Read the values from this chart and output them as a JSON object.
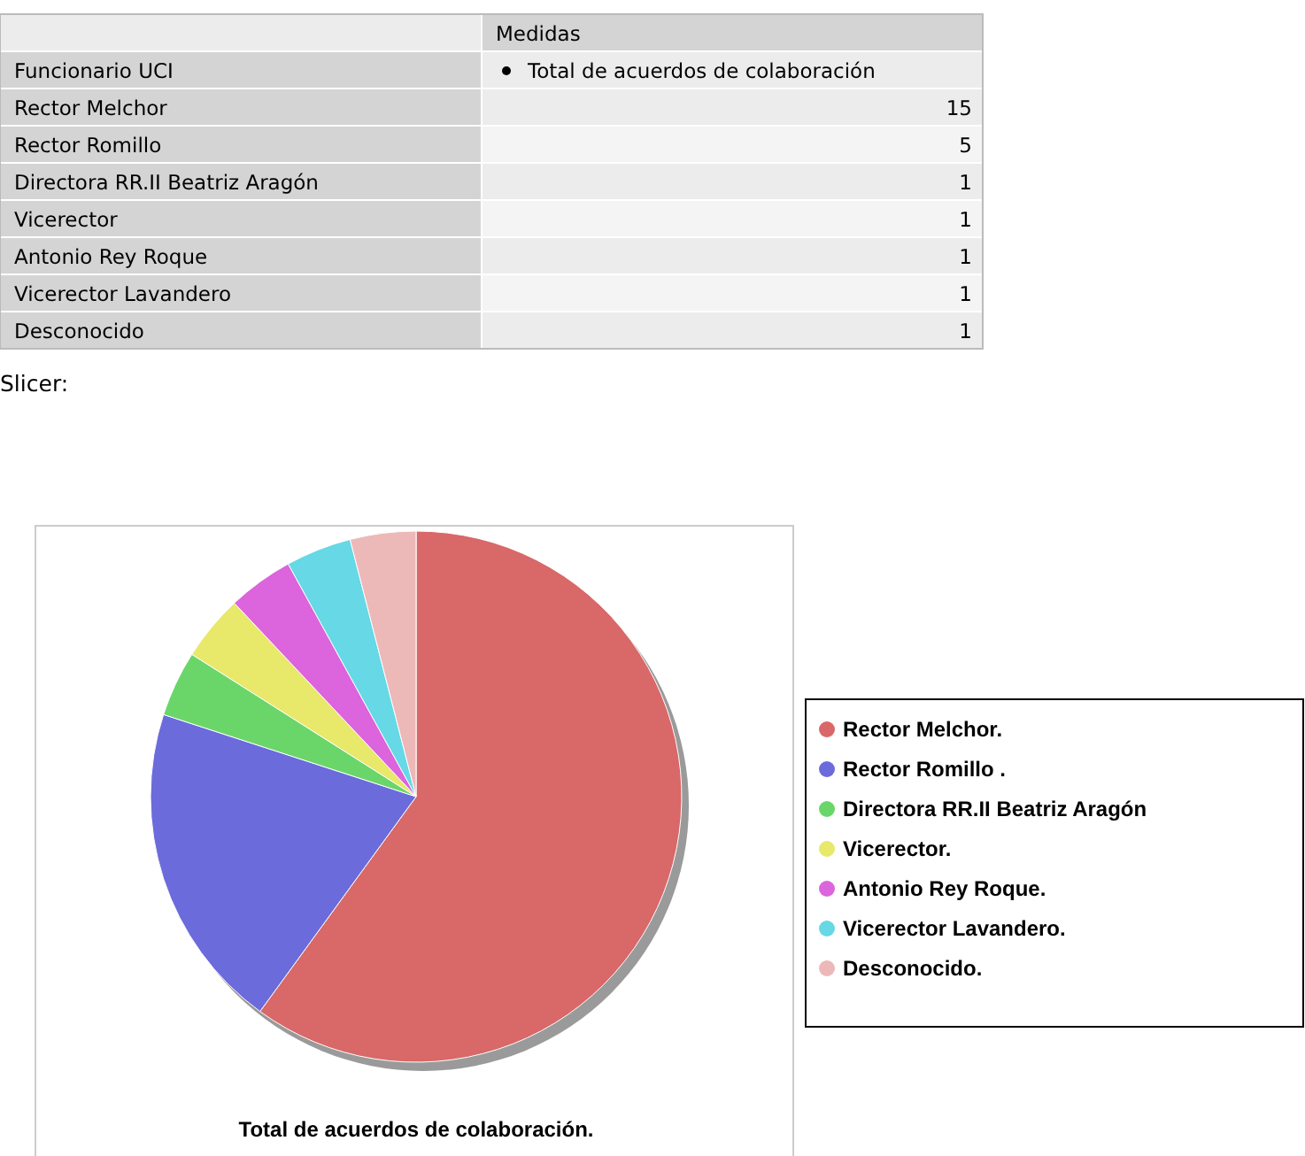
{
  "chart_data": [
    {
      "type": "other",
      "categories": [
        "Rector Melchor",
        "Rector Romillo",
        "Directora RR.II Beatriz Aragón",
        "Vicerector",
        "Antonio Rey Roque",
        "Vicerector Lavandero",
        "Desconocido"
      ],
      "values": [
        15,
        5,
        1,
        1,
        1,
        1,
        1
      ],
      "data_labels": true,
      "annotations": [
        "Medidas",
        "Funcionario UCI",
        "Total de acuerdos de colaboración"
      ]
    },
    {
      "type": "pie",
      "title": "Total de acuerdos de colaboración.",
      "categories": [
        "Rector Melchor.",
        "Rector Romillo .",
        "Directora RR.II Beatriz Aragón",
        "Vicerector.",
        "Antonio Rey Roque.",
        "Vicerector Lavandero.",
        "Desconocido."
      ],
      "values": [
        60,
        20,
        4,
        4,
        4,
        4,
        4
      ],
      "colors": [
        "#d96868",
        "#6b6bdc",
        "#6ad66a",
        "#e8e86a",
        "#dc64dc",
        "#66d8e6",
        "#edb8b8"
      ],
      "legend": "right",
      "annotations": [
        "Slicer:"
      ]
    }
  ]
}
